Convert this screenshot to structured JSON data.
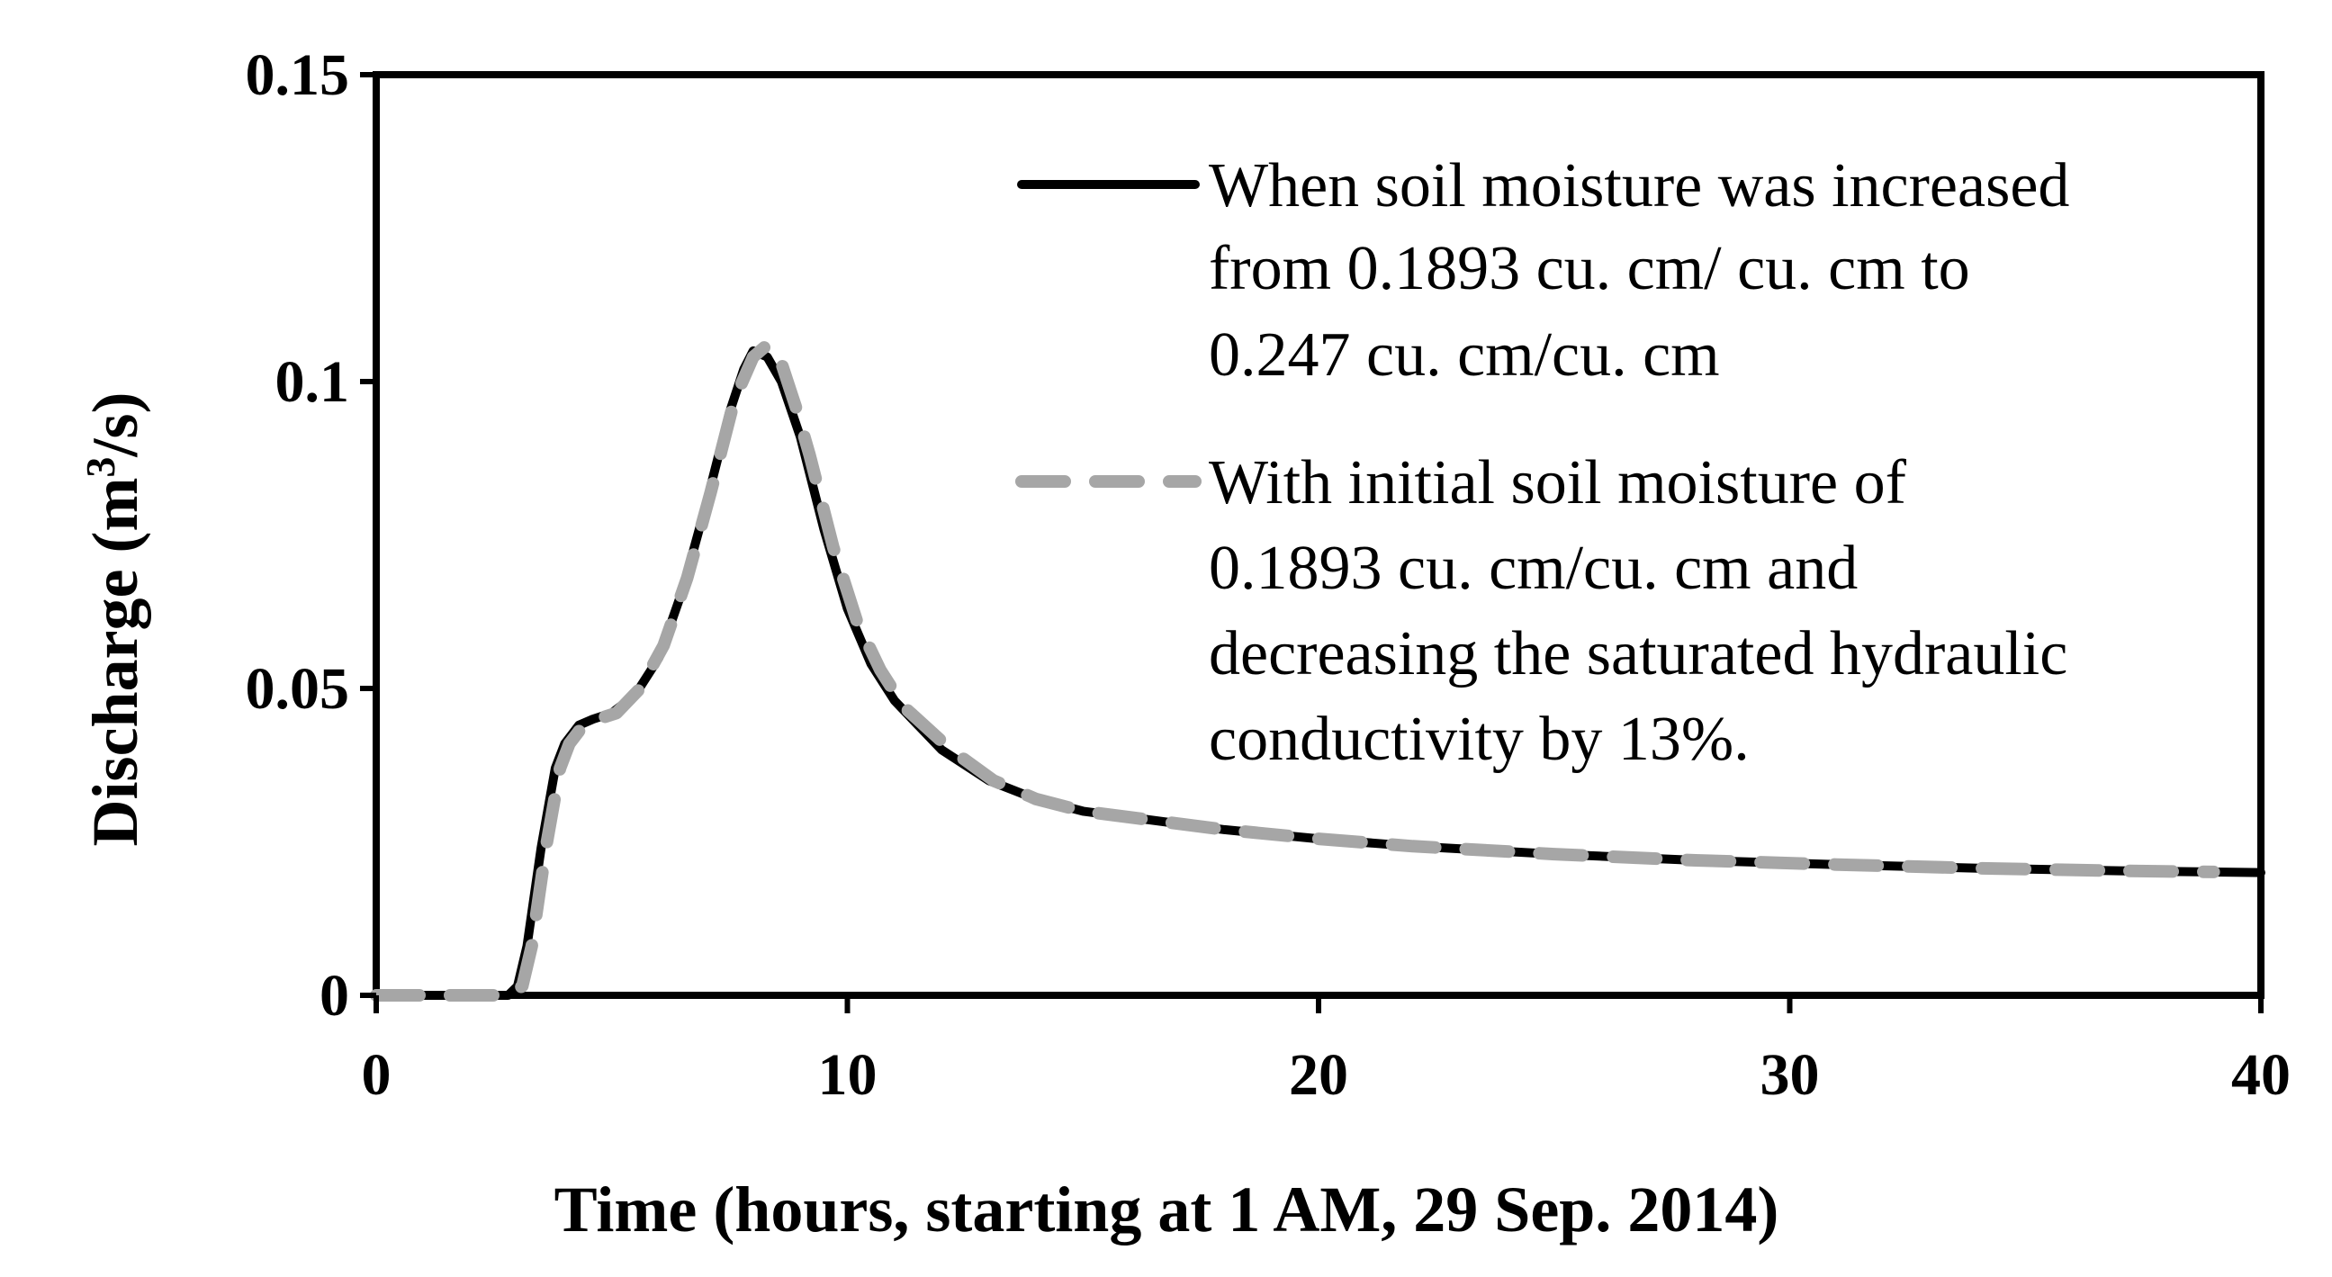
{
  "chart_data": {
    "type": "line",
    "title": "",
    "xlabel": "Time (hours, starting at 1 AM, 29 Sep. 2014)",
    "ylabel_main": "Discharge (m",
    "ylabel_sup": "3",
    "ylabel_tail": "/s)",
    "xlim": [
      0,
      40
    ],
    "ylim": [
      0,
      0.15
    ],
    "xticks": [
      0,
      10,
      20,
      30,
      40
    ],
    "xtick_labels": [
      "0",
      "10",
      "20",
      "30",
      "40"
    ],
    "yticks": [
      0,
      0.05,
      0.1,
      0.15
    ],
    "ytick_labels": [
      "0",
      "0.05",
      "0.1",
      "0.15"
    ],
    "grid": false,
    "legend_position": "top-right",
    "series": [
      {
        "name": "When soil moisture was increased from 0.1893 cu. cm/ cu. cm to 0.247 cu. cm/cu. cm",
        "legend_lines": [
          "When soil moisture was increased",
          "from 0.1893 cu. cm/ cu. cm to",
          "0.247 cu. cm/cu. cm"
        ],
        "color": "#000000",
        "style": "solid",
        "x": [
          0,
          1,
          2,
          2.8,
          3.0,
          3.2,
          3.5,
          3.8,
          4.0,
          4.3,
          4.6,
          5.0,
          5.5,
          6.0,
          6.5,
          7.0,
          7.5,
          7.8,
          8.0,
          8.3,
          8.6,
          9.0,
          9.5,
          10.0,
          10.5,
          11.0,
          12.0,
          13.0,
          14.0,
          15.0,
          16.0,
          18.0,
          20.0,
          22.0,
          25.0,
          28.0,
          31.0,
          34.0,
          37.0,
          40.0
        ],
        "y": [
          0,
          0,
          0,
          0,
          0.0015,
          0.008,
          0.024,
          0.037,
          0.041,
          0.044,
          0.045,
          0.046,
          0.049,
          0.055,
          0.066,
          0.08,
          0.095,
          0.102,
          0.105,
          0.104,
          0.1,
          0.091,
          0.076,
          0.063,
          0.054,
          0.048,
          0.04,
          0.035,
          0.032,
          0.03,
          0.029,
          0.027,
          0.0255,
          0.0243,
          0.023,
          0.022,
          0.0213,
          0.0207,
          0.0203,
          0.02
        ]
      },
      {
        "name": "With initial soil moisture of 0.1893 cu. cm/cu. cm and decreasing the saturated hydraulic conductivity by 13%.",
        "legend_lines": [
          "With initial soil moisture of",
          "0.1893 cu. cm/cu. cm and",
          "decreasing the saturated hydraulic",
          "conductivity by 13%."
        ],
        "color": "#a6a6a6",
        "style": "dashed",
        "x": [
          0,
          1,
          2,
          2.8,
          3.1,
          3.3,
          3.6,
          3.9,
          4.1,
          4.4,
          4.7,
          5.1,
          5.6,
          6.1,
          6.6,
          7.1,
          7.6,
          8.0,
          8.3,
          8.6,
          8.9,
          9.2,
          9.7,
          10.2,
          10.7,
          11.2,
          12.2,
          13.1,
          14.0,
          15.0,
          16.0,
          18.0,
          20.0,
          22.0,
          25.0,
          28.0,
          31.0,
          34.0,
          37.0,
          39.0
        ],
        "y": [
          0,
          0,
          0,
          0,
          0.0015,
          0.008,
          0.024,
          0.037,
          0.041,
          0.044,
          0.045,
          0.046,
          0.05,
          0.057,
          0.068,
          0.082,
          0.097,
          0.104,
          0.106,
          0.103,
          0.096,
          0.088,
          0.073,
          0.061,
          0.053,
          0.047,
          0.04,
          0.035,
          0.032,
          0.03,
          0.029,
          0.027,
          0.0255,
          0.0243,
          0.023,
          0.022,
          0.0213,
          0.0207,
          0.0203,
          0.0201
        ]
      }
    ]
  }
}
